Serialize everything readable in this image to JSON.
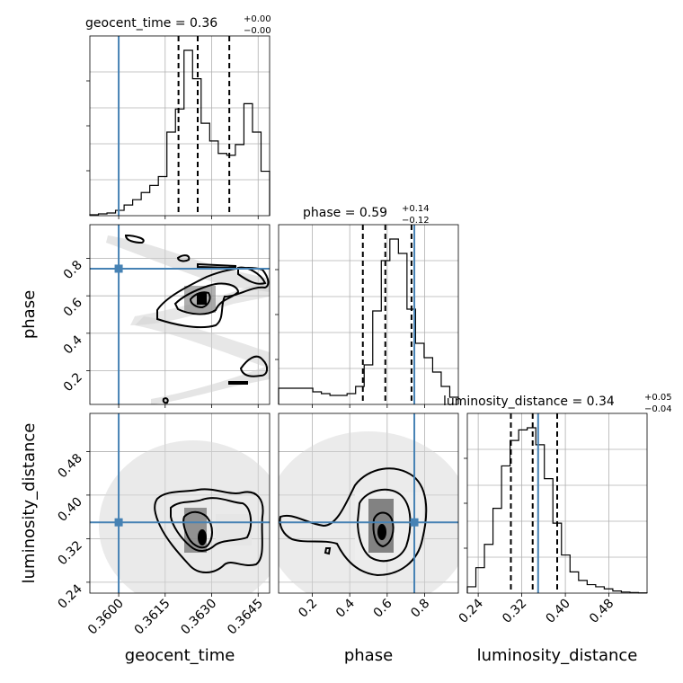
{
  "chart_data": {
    "type": "corner",
    "parameters": [
      "geocent_time",
      "phase",
      "luminosity_distance"
    ],
    "truths": {
      "geocent_time": 0.36,
      "phase": 0.745,
      "luminosity_distance": 0.35
    },
    "titles": [
      {
        "param": "geocent_time",
        "label": "geocent_time = 0.36",
        "plus": "+0.00",
        "minus": "−0.00"
      },
      {
        "param": "phase",
        "label": "phase = 0.59",
        "plus": "+0.14",
        "minus": "−0.12"
      },
      {
        "param": "luminosity_distance",
        "label": "luminosity_distance = 0.34",
        "plus": "+0.05",
        "minus": "−0.04"
      }
    ],
    "axis_labels": {
      "geocent_time": "geocent_time",
      "phase": "phase",
      "luminosity_distance": "luminosity_distance"
    },
    "ranges": {
      "geocent_time": [
        0.35907,
        0.36487
      ],
      "phase": [
        0.02,
        0.98
      ],
      "luminosity_distance": [
        0.22,
        0.55
      ]
    },
    "ticks": {
      "geocent_time": {
        "values": [
          0.36,
          0.3615,
          0.363,
          0.3645
        ],
        "labels": [
          "0.3600",
          "0.3615",
          "0.3630",
          "0.3645"
        ]
      },
      "phase_y": {
        "values": [
          0.2,
          0.4,
          0.6,
          0.8
        ],
        "labels": [
          "0.2",
          "0.4",
          "0.6",
          "0.8"
        ]
      },
      "phase_x": {
        "values": [
          0.2,
          0.4,
          0.6,
          0.8
        ],
        "labels": [
          "0.2",
          "0.4",
          "0.6",
          "0.8"
        ]
      },
      "luminosity_distance": {
        "values": [
          0.24,
          0.32,
          0.4,
          0.48
        ],
        "labels": [
          "0.24",
          "0.32",
          "0.40",
          "0.48"
        ]
      }
    },
    "quantiles": {
      "geocent_time": [
        0.36193,
        0.36255,
        0.36357
      ],
      "phase": [
        0.47,
        0.59,
        0.73
      ],
      "luminosity_distance": [
        0.3,
        0.34,
        0.385
      ]
    },
    "histograms": {
      "geocent_time": [
        0.5,
        1,
        1.5,
        3,
        6,
        9,
        13,
        17,
        22,
        47,
        60,
        93,
        77,
        52,
        42,
        35,
        34,
        40,
        63,
        47,
        25
      ],
      "phase": [
        9,
        9,
        9,
        9,
        7,
        6,
        5,
        5,
        6,
        10,
        22,
        52,
        80,
        92,
        84,
        53,
        34,
        26,
        18,
        10,
        4
      ],
      "luminosity_distance": [
        3,
        12,
        23,
        40,
        60,
        72,
        77,
        78,
        70,
        54,
        33,
        18,
        10,
        6,
        4,
        3,
        2,
        1,
        0.5,
        0.3,
        0.1
      ]
    }
  }
}
